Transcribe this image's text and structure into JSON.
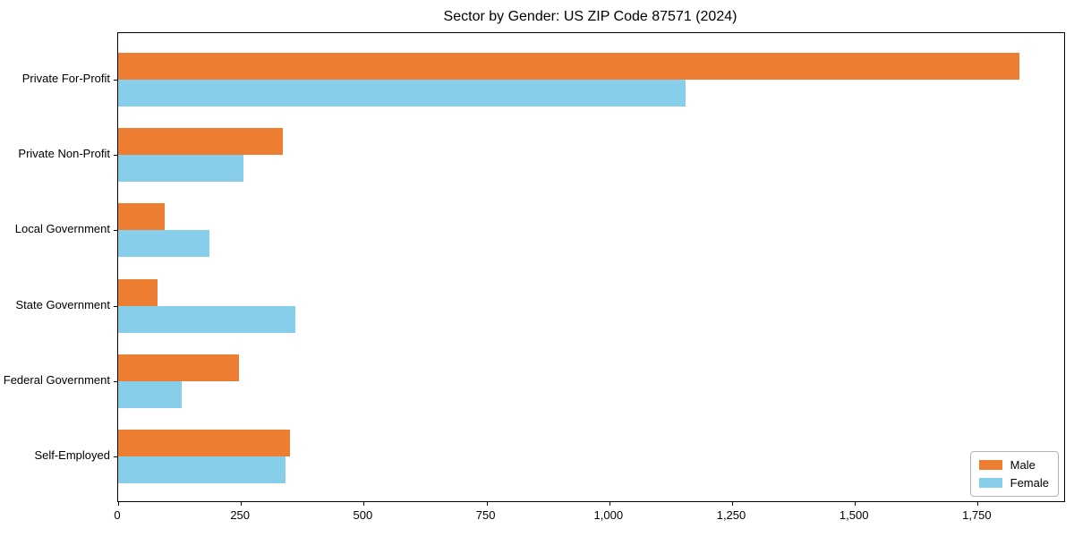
{
  "chart_data": {
    "type": "bar",
    "orientation": "horizontal",
    "title": "Sector by Gender: US ZIP Code 87571 (2024)",
    "categories": [
      "Private For-Profit",
      "Private Non-Profit",
      "Local Government",
      "State Government",
      "Federal Government",
      "Self-Employed"
    ],
    "series": [
      {
        "name": "Male",
        "color": "#ED7D31",
        "values": [
          1835,
          335,
          95,
          80,
          245,
          350
        ]
      },
      {
        "name": "Female",
        "color": "#87CEEB",
        "values": [
          1155,
          255,
          185,
          360,
          130,
          340
        ]
      }
    ],
    "xlabel": "",
    "ylabel": "",
    "xlim": [
      0,
      1926
    ],
    "xticks": [
      0,
      250,
      500,
      750,
      1000,
      1250,
      1500,
      1750
    ],
    "xtick_labels": [
      "0",
      "250",
      "500",
      "750",
      "1,000",
      "1,250",
      "1,500",
      "1,750"
    ],
    "grid": false,
    "legend": {
      "position": "lower right",
      "items": [
        {
          "label": "Male",
          "color": "#ED7D31"
        },
        {
          "label": "Female",
          "color": "#87CEEB"
        }
      ]
    }
  }
}
